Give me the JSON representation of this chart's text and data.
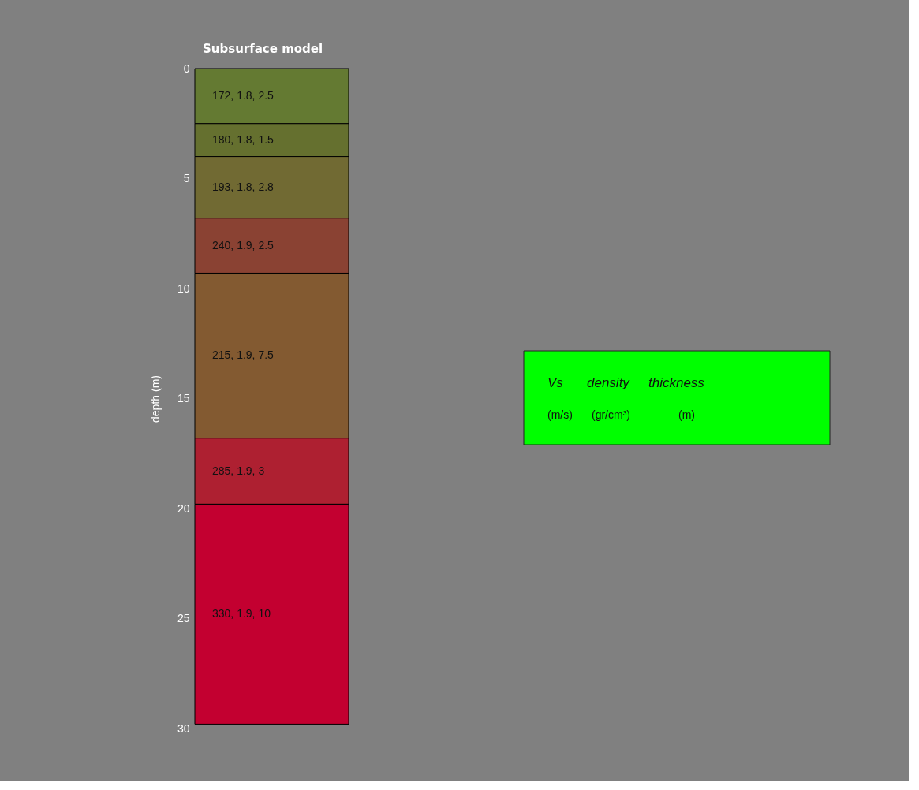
{
  "chart_data": {
    "type": "bar",
    "stacked": true,
    "title": "Subsurface model",
    "ylabel": "depth (m)",
    "categories": [
      null
    ],
    "ylim": [
      30,
      0
    ],
    "yticks": [
      0,
      5,
      10,
      15,
      20,
      25,
      30
    ],
    "grid": false,
    "tick_labels": "y",
    "series": [
      {
        "color": "#647a32",
        "values": [
          2.5
        ],
        "value_labels": [
          "172, 1.8, 2.5"
        ]
      },
      {
        "color": "#65702f",
        "values": [
          1.5
        ],
        "value_labels": [
          "180, 1.8, 1.5"
        ]
      },
      {
        "color": "#716a33",
        "values": [
          2.8
        ],
        "value_labels": [
          "193, 1.8, 2.8"
        ]
      },
      {
        "color": "#8a4233",
        "values": [
          2.5
        ],
        "value_labels": [
          "240, 1.9, 2.5"
        ]
      },
      {
        "color": "#835a31",
        "values": [
          7.5
        ],
        "value_labels": [
          "215, 1.9, 7.5"
        ]
      },
      {
        "color": "#ae2031",
        "values": [
          3
        ],
        "value_labels": [
          "285, 1.9, 3"
        ]
      },
      {
        "color": "#c30030",
        "values": [
          10
        ],
        "value_labels": [
          "330, 1.9, 10"
        ]
      }
    ],
    "annotations": [
      "Vs",
      "density",
      "thickness",
      "(m/s)",
      "(gr/cm³)",
      "(m)"
    ]
  }
}
